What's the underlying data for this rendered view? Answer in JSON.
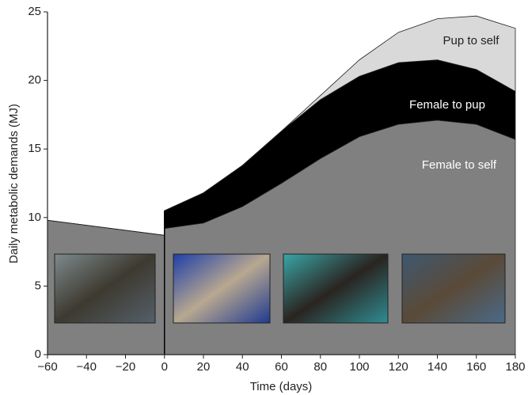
{
  "chart_data": {
    "type": "stacked_area",
    "xlabel": "Time (days)",
    "ylabel": "Daily metabolic demands (MJ)",
    "x": [
      -60,
      0,
      0,
      20,
      40,
      60,
      80,
      100,
      120,
      140,
      160,
      180
    ],
    "series": [
      {
        "name": "Female to self",
        "color": "#808080",
        "values": [
          9.8,
          8.7,
          9.2,
          9.6,
          10.8,
          12.5,
          14.3,
          15.9,
          16.8,
          17.1,
          16.8,
          15.7
        ]
      },
      {
        "name": "Female to pup",
        "color": "#000000",
        "values": [
          0,
          0,
          1.3,
          2.2,
          3.0,
          3.8,
          4.3,
          4.4,
          4.5,
          4.4,
          4.0,
          3.5
        ]
      },
      {
        "name": "Pup to self",
        "color": "#d9d9d9",
        "values": [
          0,
          0,
          0,
          0,
          0,
          0,
          0.3,
          1.2,
          2.2,
          3.0,
          3.9,
          4.6
        ]
      }
    ],
    "xlim": [
      -60,
      180
    ],
    "xticks": [
      {
        "value": -60,
        "label": "−60"
      },
      {
        "value": -40,
        "label": "−40"
      },
      {
        "value": -20,
        "label": "−20"
      },
      0,
      20,
      40,
      60,
      80,
      100,
      120,
      140,
      160,
      180
    ],
    "ylim": [
      0,
      25
    ],
    "yticks": [
      0,
      5,
      10,
      15,
      20,
      25
    ]
  }
}
